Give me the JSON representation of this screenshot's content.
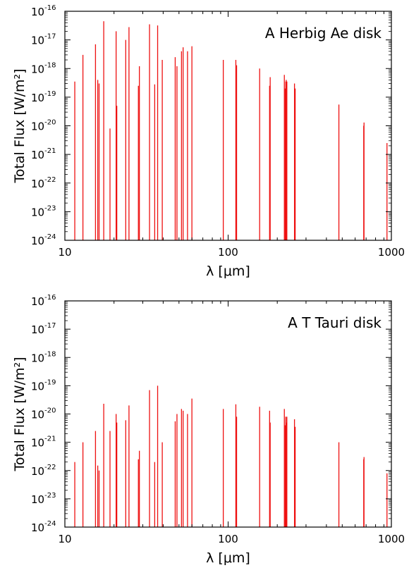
{
  "chart_data": [
    {
      "type": "bar",
      "annotation": "A Herbig Ae disk",
      "xlabel": "λ [μm]",
      "ylabel": "Total Flux [W/m²]",
      "xscale": "log",
      "yscale": "log",
      "xlim": [
        10,
        1000
      ],
      "ylim": [
        1e-24,
        1e-16
      ],
      "x_tick_labels": [
        "10",
        "100",
        "1000"
      ],
      "y_tick_labels": [
        {
          "base": "10",
          "exp": "-24"
        },
        {
          "base": "10",
          "exp": "-23"
        },
        {
          "base": "10",
          "exp": "-22"
        },
        {
          "base": "10",
          "exp": "-21"
        },
        {
          "base": "10",
          "exp": "-20"
        },
        {
          "base": "10",
          "exp": "-19"
        },
        {
          "base": "10",
          "exp": "-18"
        },
        {
          "base": "10",
          "exp": "-17"
        },
        {
          "base": "10",
          "exp": "-16"
        }
      ],
      "line_color": "#ee1111",
      "series": [
        {
          "x": [
            11.5,
            12.9,
            15.4,
            15.9,
            16.2,
            17.3,
            18.9,
            20.6,
            20.8,
            23.6,
            24.7,
            28.2,
            28.6,
            33.0,
            35.5,
            37.0,
            39.5,
            47.4,
            48.6,
            51.8,
            53.0,
            56.4,
            60.0,
            93.4,
            111.5,
            112.7,
            156.0,
            179.5,
            181.0,
            221.0,
            223.5,
            225.5,
            227.0,
            229.0,
            255.0,
            257.5,
            477.0,
            677.0,
            680.0,
            940.0
          ],
          "y": [
            3.5e-19,
            3e-18,
            7e-18,
            4e-19,
            3e-19,
            4.5e-17,
            8e-21,
            2e-17,
            5e-20,
            1e-17,
            2.8e-17,
            2.5e-19,
            1.2e-18,
            3.5e-17,
            2.8e-19,
            3.2e-17,
            2e-18,
            2.5e-18,
            1.2e-18,
            4e-18,
            5.5e-18,
            4e-18,
            6e-18,
            2e-18,
            2e-18,
            1.3e-18,
            1e-18,
            2.5e-19,
            5e-19,
            6e-19,
            2e-19,
            3.5e-19,
            4e-19,
            3.5e-19,
            3e-19,
            2e-19,
            5.5e-20,
            1e-20,
            1.3e-20,
            2.5e-21
          ]
        }
      ]
    },
    {
      "type": "bar",
      "annotation": "A T Tauri disk",
      "xlabel": "λ [μm]",
      "ylabel": "Total Flux [W/m²]",
      "xscale": "log",
      "yscale": "log",
      "xlim": [
        10,
        1000
      ],
      "ylim": [
        1e-24,
        1e-16
      ],
      "x_tick_labels": [
        "10",
        "100",
        "1000"
      ],
      "y_tick_labels": [
        {
          "base": "10",
          "exp": "-24"
        },
        {
          "base": "10",
          "exp": "-23"
        },
        {
          "base": "10",
          "exp": "-22"
        },
        {
          "base": "10",
          "exp": "-21"
        },
        {
          "base": "10",
          "exp": "-20"
        },
        {
          "base": "10",
          "exp": "-19"
        },
        {
          "base": "10",
          "exp": "-18"
        },
        {
          "base": "10",
          "exp": "-17"
        },
        {
          "base": "10",
          "exp": "-16"
        }
      ],
      "line_color": "#ee1111",
      "series": [
        {
          "x": [
            11.5,
            12.9,
            15.4,
            15.9,
            16.2,
            17.3,
            18.9,
            20.6,
            20.8,
            23.6,
            24.7,
            28.2,
            28.6,
            33.0,
            35.5,
            37.0,
            39.5,
            47.4,
            48.6,
            51.8,
            53.0,
            56.4,
            60.0,
            93.4,
            111.5,
            112.7,
            156.0,
            179.5,
            181.0,
            221.0,
            223.5,
            225.5,
            227.0,
            229.0,
            255.0,
            257.5,
            477.0,
            677.0,
            680.0,
            940.0
          ],
          "y": [
            2e-22,
            1e-21,
            2.5e-21,
            1.5e-22,
            1e-22,
            2.3e-20,
            2.5e-21,
            1e-20,
            5e-21,
            6e-21,
            2e-20,
            2.5e-22,
            5e-22,
            7e-20,
            2e-22,
            1e-19,
            1e-21,
            5.5e-21,
            1e-20,
            1.5e-20,
            1.3e-20,
            1e-20,
            3.5e-20,
            1.5e-20,
            2.2e-20,
            8e-21,
            1.8e-20,
            1.3e-20,
            5e-21,
            1.5e-20,
            4e-21,
            8e-21,
            5e-21,
            8e-21,
            6.5e-21,
            3.5e-21,
            1e-21,
            2.5e-22,
            3e-22,
            8e-23
          ]
        }
      ]
    }
  ]
}
